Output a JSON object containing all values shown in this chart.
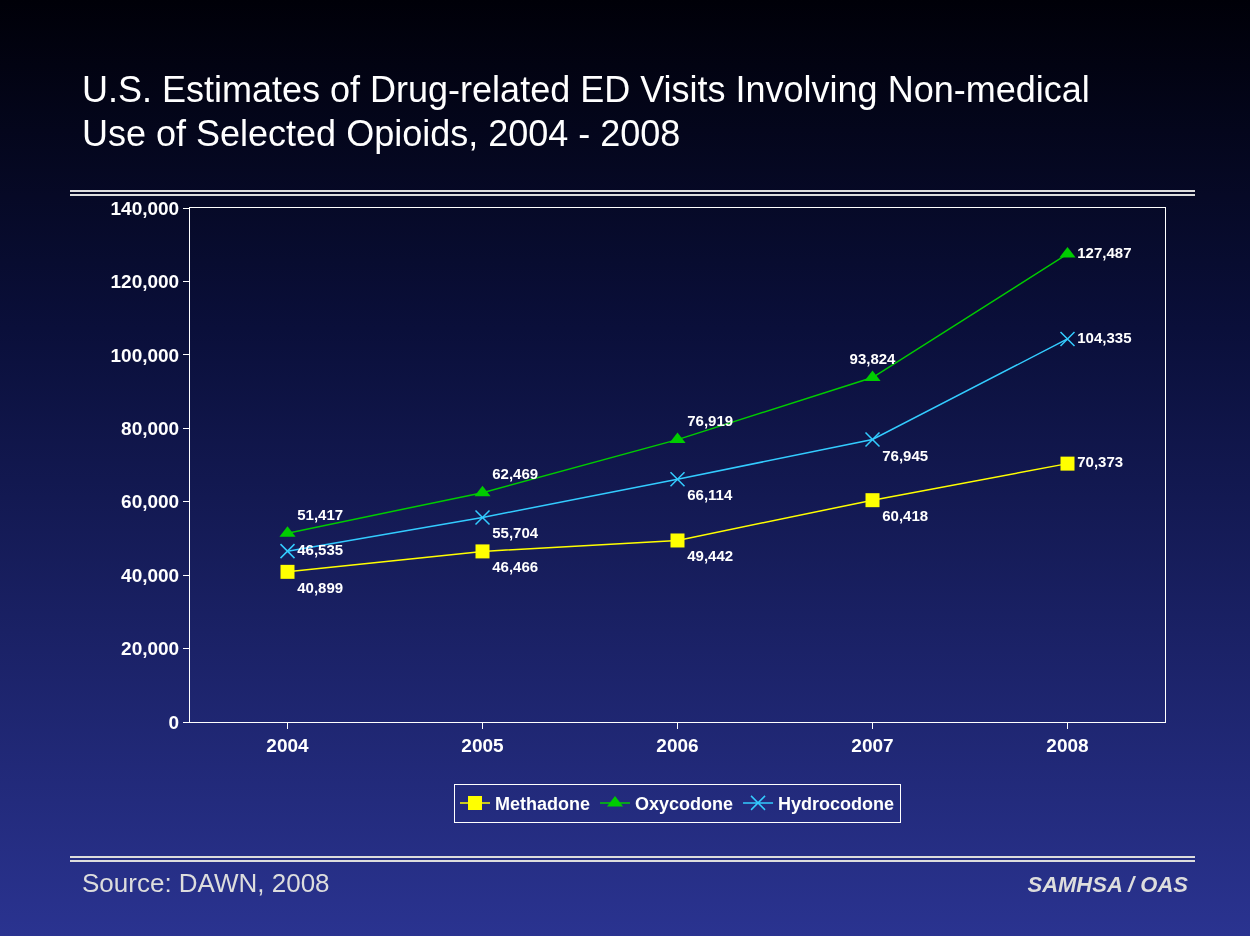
{
  "chart_data": {
    "type": "line",
    "title": "U.S. Estimates of Drug-related ED Visits Involving Non-medical Use of Selected Opioids, 2004 - 2008",
    "categories": [
      "2004",
      "2005",
      "2006",
      "2007",
      "2008"
    ],
    "series": [
      {
        "name": "Methadone",
        "color": "#ffff00",
        "marker": "square",
        "values": [
          40899,
          46466,
          49442,
          60418,
          70373
        ],
        "value_labels": [
          "40,899",
          "46,466",
          "49,442",
          "60,418",
          "70,373"
        ]
      },
      {
        "name": "Oxycodone",
        "color": "#00cc00",
        "marker": "triangle",
        "values": [
          51417,
          62469,
          76919,
          93824,
          127487
        ],
        "value_labels": [
          "51,417",
          "62,469",
          "76,919",
          "93,824",
          "127,487"
        ]
      },
      {
        "name": "Hydrocodone",
        "color": "#33ccff",
        "marker": "cross",
        "values": [
          46535,
          55704,
          66114,
          76945,
          104335
        ],
        "value_labels": [
          "46,535",
          "55,704",
          "66,114",
          "76,945",
          "104,335"
        ]
      }
    ],
    "ylim": [
      0,
      140000
    ],
    "yticks": [
      0,
      {
        "value": 20000,
        "label": "20,000"
      },
      {
        "value": 40000,
        "label": "40,000"
      },
      {
        "value": 60000,
        "label": "60,000"
      },
      {
        "value": 80000,
        "label": "80,000"
      },
      {
        "value": 100000,
        "label": "100,000"
      },
      {
        "value": 120000,
        "label": "120,000"
      },
      {
        "value": 140000,
        "label": "140,000"
      }
    ],
    "grid": false,
    "legend": "bottom",
    "line_style": "solid",
    "annotations": [
      "Source:  DAWN, 2008",
      "SAMHSA / OAS"
    ]
  }
}
